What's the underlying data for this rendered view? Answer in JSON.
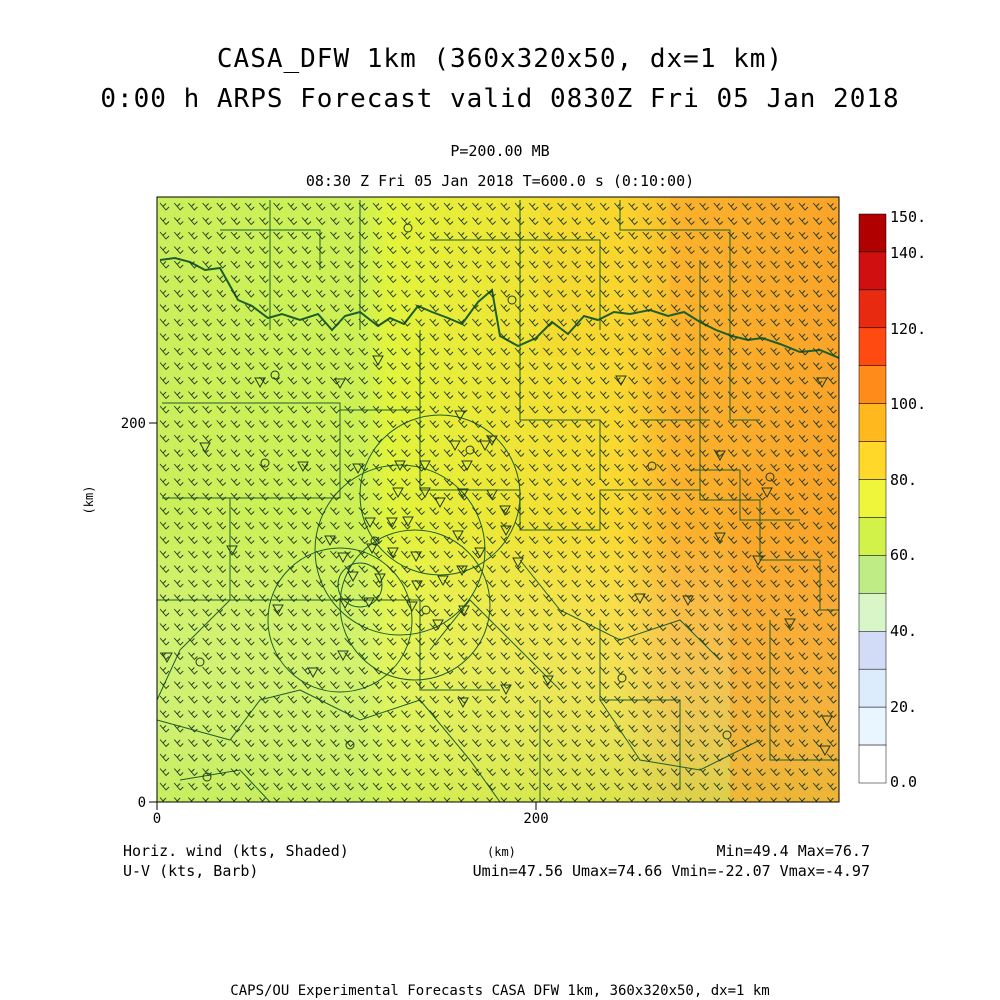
{
  "title": {
    "line1": "CASA_DFW 1km (360x320x50, dx=1 km)",
    "line2": "0:00 h ARPS Forecast valid 0830Z Fri 05 Jan 2018"
  },
  "subtitle": {
    "pressure": "P=200.00 MB",
    "time": "08:30 Z Fri 05 Jan 2018   T=600.0 s (0:10:00)"
  },
  "axes": {
    "x_unit": "(km)",
    "y_unit": "(km)",
    "x_ticks": [
      "0",
      "200"
    ],
    "y_ticks": [
      "0",
      "200"
    ]
  },
  "colorbar": {
    "labels": [
      "150.",
      "140.",
      "120.",
      "100.",
      "80.",
      "60.",
      "40.",
      "20.",
      "0.0"
    ],
    "colors": [
      "#b00000",
      "#d01010",
      "#e82a10",
      "#ff4a12",
      "#ff8c1a",
      "#ffb81e",
      "#ffd82a",
      "#eef53a",
      "#d2f24a",
      "#c0ec86",
      "#d8f6c8",
      "#d2dcf6",
      "#dcecfc",
      "#eaf6ff",
      "#ffffff"
    ]
  },
  "footer": {
    "left1": "Horiz. wind (kts, Shaded)",
    "left2": "U-V (kts, Barb)",
    "center": "(km)",
    "right1": "Min=49.4 Max=76.7",
    "right2": "Umin=47.56 Umax=74.66 Vmin=-22.07 Vmax=-4.97"
  },
  "bottom_caption": "CAPS/OU Experimental Forecasts  CASA DFW 1km, 360x320x50, dx=1 km"
}
